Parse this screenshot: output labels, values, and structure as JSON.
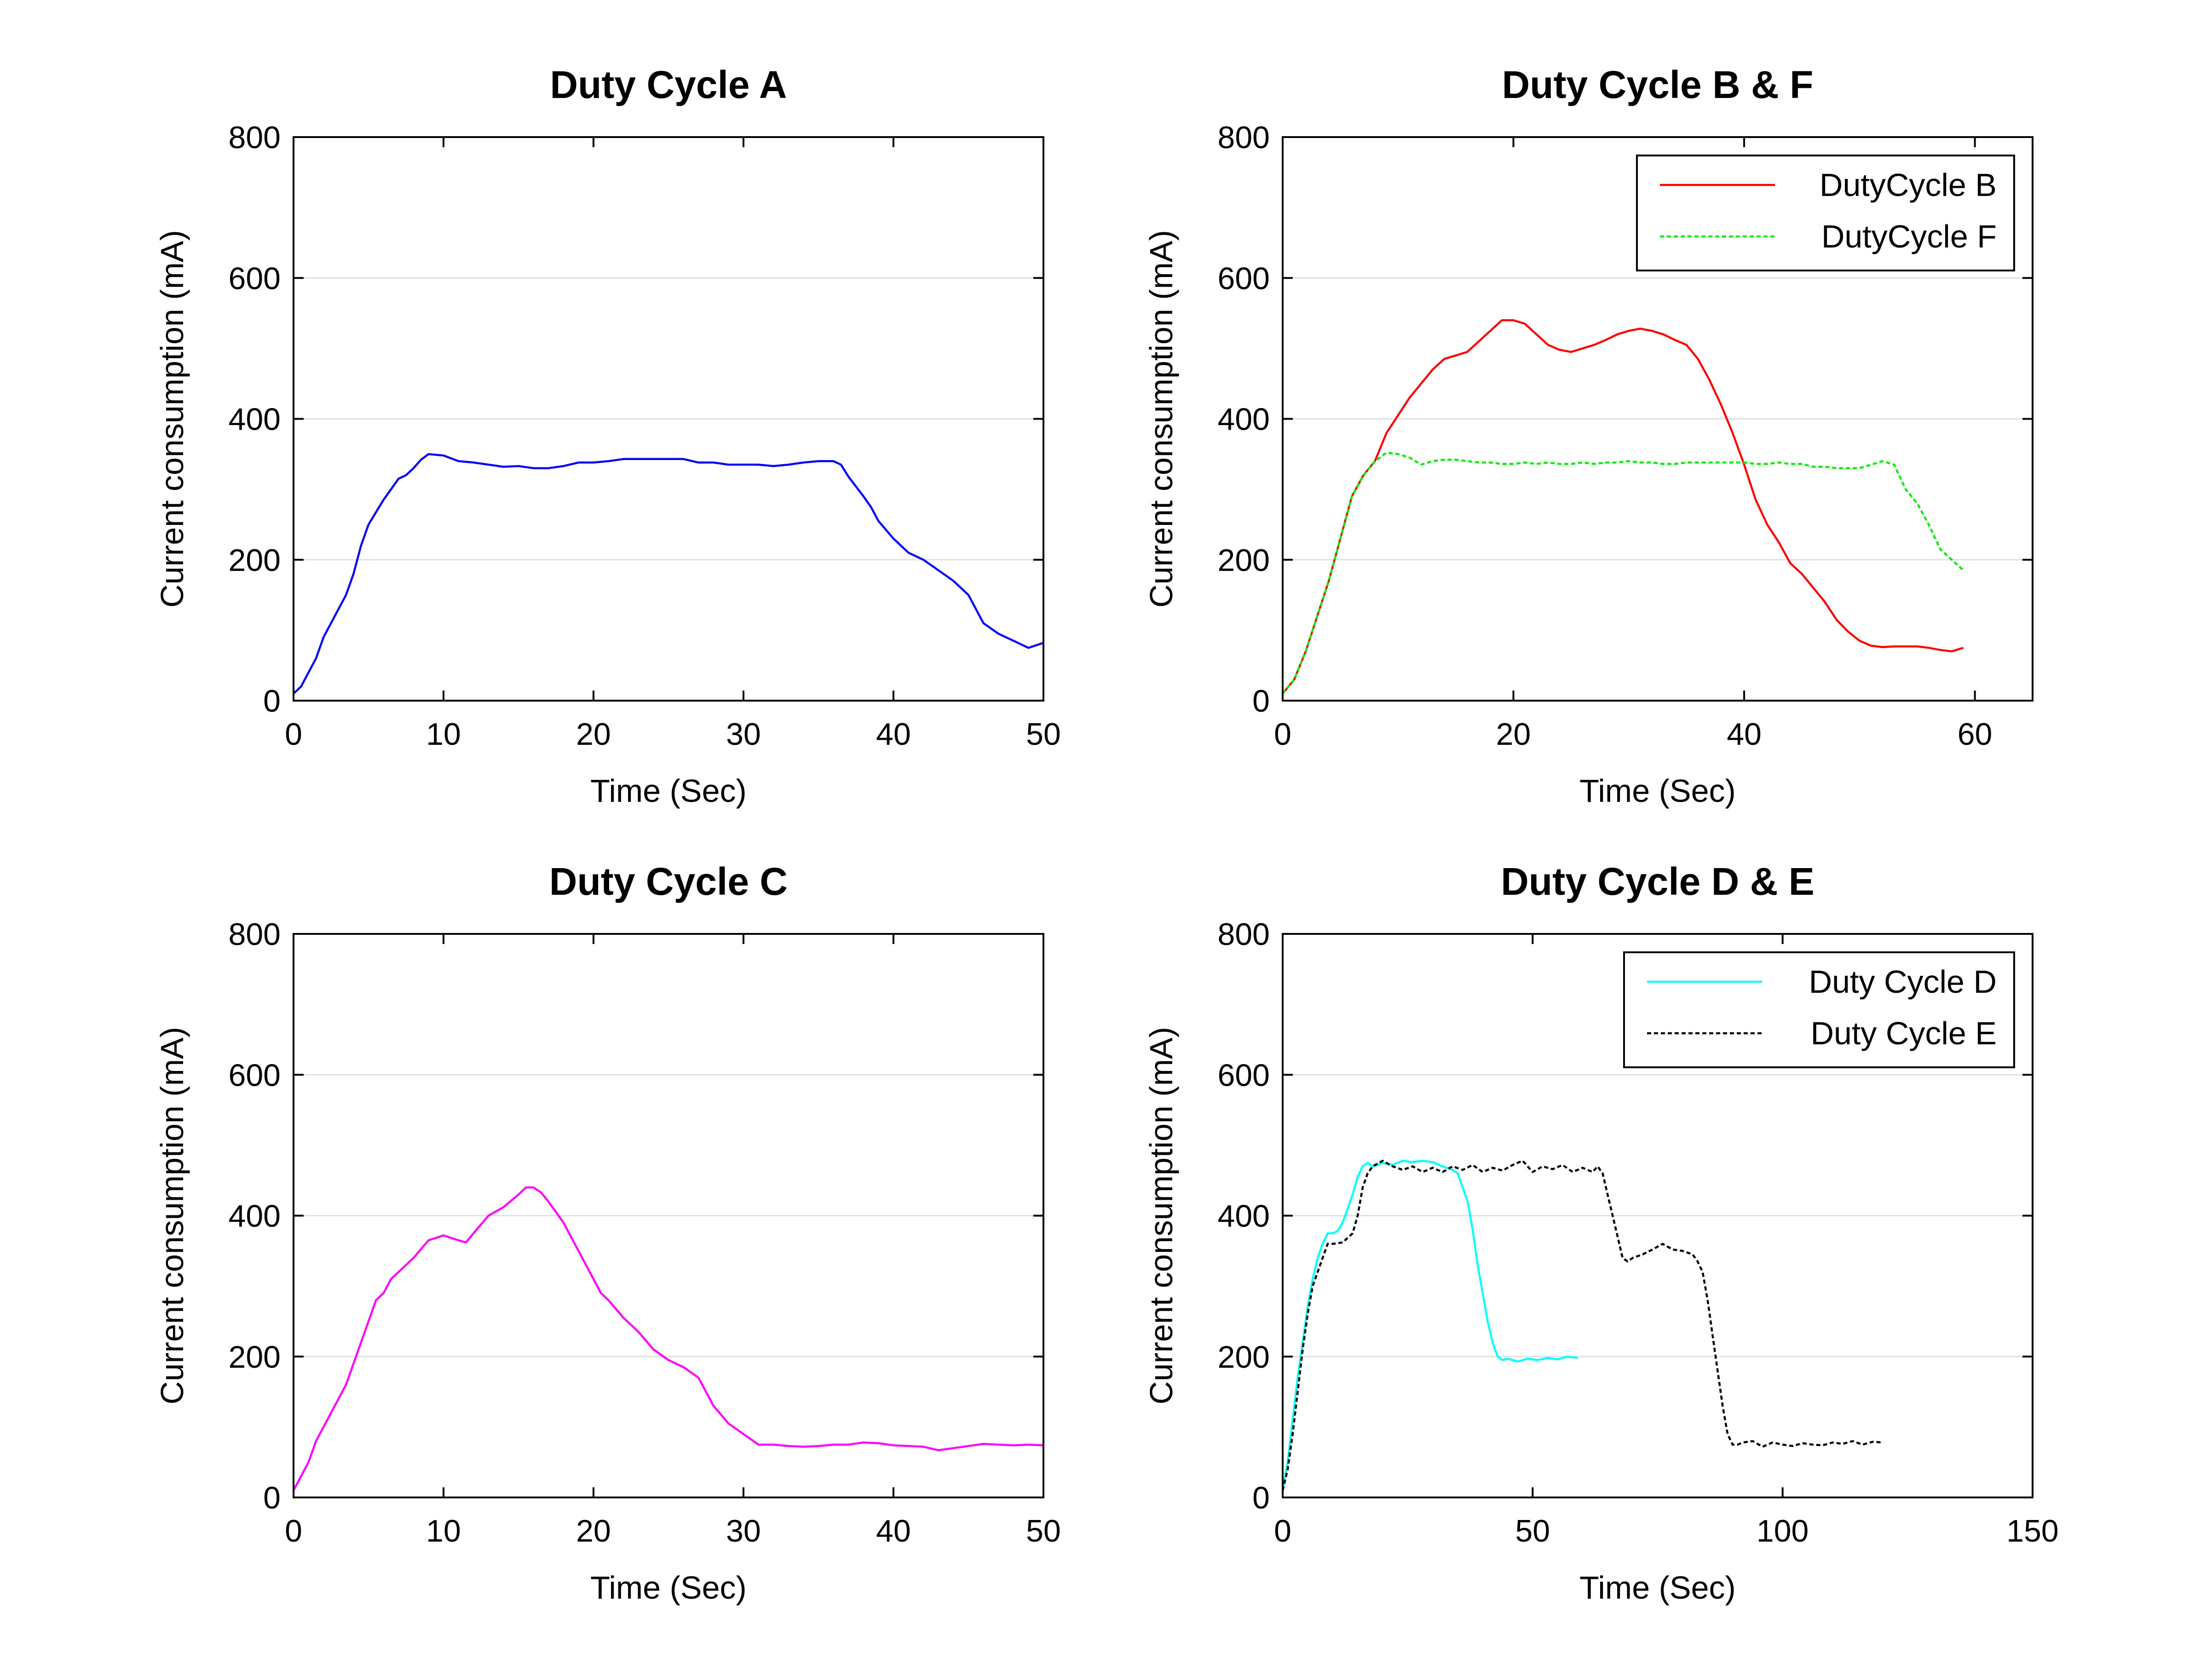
{
  "chart_data": [
    {
      "type": "line",
      "title": "Duty Cycle A",
      "xlabel": "Time (Sec)",
      "ylabel": "Current consumption (mA)",
      "xlim": [
        0,
        50
      ],
      "ylim": [
        0,
        800
      ],
      "xticks": [
        0,
        10,
        20,
        30,
        40,
        50
      ],
      "yticks": [
        0,
        200,
        400,
        600,
        800
      ],
      "grid": "horizontal",
      "legend": null,
      "series": [
        {
          "color": "#0000ff",
          "dash": "solid",
          "x": [
            0,
            0.5,
            1,
            1.5,
            2,
            3,
            3.5,
            4,
            4.5,
            5,
            6,
            7,
            7.5,
            8,
            8.5,
            9,
            10,
            11,
            12,
            13,
            14,
            15,
            16,
            17,
            18,
            19,
            20,
            21,
            22,
            23,
            24,
            25,
            26,
            27,
            28,
            29,
            30,
            31,
            32,
            33,
            34,
            35,
            35.5,
            36,
            36.5,
            37,
            38,
            38.5,
            39,
            40,
            41,
            42,
            43,
            44,
            45,
            46,
            47,
            48,
            49,
            50
          ],
          "y": [
            10,
            20,
            40,
            60,
            90,
            130,
            150,
            180,
            220,
            250,
            285,
            315,
            320,
            330,
            342,
            350,
            348,
            340,
            338,
            335,
            332,
            333,
            330,
            330,
            333,
            338,
            338,
            340,
            343,
            343,
            343,
            343,
            343,
            338,
            338,
            335,
            335,
            335,
            333,
            335,
            338,
            340,
            340,
            340,
            335,
            318,
            290,
            275,
            255,
            230,
            210,
            200,
            185,
            170,
            150,
            110,
            95,
            85,
            75,
            82
          ]
        }
      ]
    },
    {
      "type": "line",
      "title": "Duty Cycle B & F",
      "xlabel": "Time (Sec)",
      "ylabel": "Current consumption (mA)",
      "xlim": [
        0,
        65
      ],
      "ylim": [
        0,
        800
      ],
      "xticks": [
        0,
        20,
        40,
        60
      ],
      "yticks": [
        0,
        200,
        400,
        600,
        800
      ],
      "grid": "horizontal",
      "legend": "top-right",
      "series": [
        {
          "name": "DutyCycle B",
          "color": "#ff0000",
          "dash": "solid",
          "x": [
            0,
            1,
            2,
            3,
            4,
            5,
            6,
            7,
            8,
            9,
            10,
            11,
            12,
            13,
            14,
            15,
            16,
            17,
            18,
            19,
            20,
            21,
            22,
            23,
            24,
            25,
            26,
            27,
            28,
            29,
            30,
            31,
            32,
            33,
            34,
            35,
            36,
            37,
            38,
            39,
            40,
            41,
            42,
            43,
            44,
            45,
            46,
            47,
            48,
            49,
            50,
            51,
            52,
            53,
            54,
            55,
            56,
            57,
            58,
            59
          ],
          "y": [
            10,
            30,
            70,
            120,
            170,
            230,
            290,
            320,
            340,
            380,
            405,
            430,
            450,
            470,
            485,
            490,
            495,
            510,
            525,
            540,
            540,
            535,
            520,
            505,
            498,
            495,
            500,
            505,
            512,
            520,
            525,
            528,
            525,
            520,
            512,
            505,
            485,
            455,
            420,
            380,
            335,
            285,
            250,
            225,
            195,
            180,
            160,
            140,
            115,
            98,
            85,
            78,
            76,
            77,
            77,
            77,
            75,
            72,
            70,
            75
          ]
        },
        {
          "name": "DutyCycle F",
          "color": "#00ee00",
          "dash": "dashed",
          "x": [
            0,
            1,
            2,
            3,
            4,
            5,
            6,
            7,
            8,
            9,
            10,
            11,
            12,
            13,
            14,
            15,
            16,
            17,
            18,
            19,
            20,
            21,
            22,
            23,
            24,
            25,
            26,
            27,
            28,
            29,
            30,
            31,
            32,
            33,
            34,
            35,
            36,
            37,
            38,
            39,
            40,
            41,
            42,
            43,
            44,
            45,
            46,
            47,
            48,
            49,
            50,
            51,
            52,
            53,
            54,
            55,
            56,
            57,
            58,
            59
          ],
          "y": [
            10,
            30,
            70,
            120,
            170,
            230,
            290,
            320,
            340,
            352,
            350,
            345,
            335,
            340,
            342,
            342,
            340,
            338,
            338,
            336,
            336,
            338,
            336,
            338,
            336,
            336,
            338,
            336,
            338,
            338,
            340,
            338,
            338,
            336,
            336,
            338,
            338,
            338,
            338,
            338,
            338,
            336,
            336,
            338,
            336,
            336,
            332,
            332,
            330,
            330,
            330,
            335,
            340,
            335,
            300,
            280,
            250,
            215,
            200,
            185
          ]
        }
      ]
    },
    {
      "type": "line",
      "title": "Duty Cycle C",
      "xlabel": "Time (Sec)",
      "ylabel": "Current consumption (mA)",
      "xlim": [
        0,
        50
      ],
      "ylim": [
        0,
        800
      ],
      "xticks": [
        0,
        10,
        20,
        30,
        40,
        50
      ],
      "yticks": [
        0,
        200,
        400,
        600,
        800
      ],
      "grid": "horizontal",
      "legend": null,
      "series": [
        {
          "color": "#ff00ff",
          "dash": "solid",
          "x": [
            0,
            0.5,
            1,
            1.5,
            2,
            3,
            3.5,
            4,
            4.5,
            5,
            5.5,
            6,
            6.5,
            7,
            8,
            9,
            10,
            11,
            11.5,
            12,
            13,
            14,
            15,
            15.5,
            16,
            16.5,
            17,
            18,
            18.5,
            19,
            20,
            20.5,
            21,
            22,
            23,
            24,
            25,
            26,
            27,
            28,
            29,
            30,
            31,
            32,
            33,
            34,
            35,
            36,
            37,
            38,
            39,
            40,
            41,
            42,
            43,
            44,
            45,
            46,
            47,
            48,
            49,
            50
          ],
          "y": [
            10,
            30,
            50,
            80,
            100,
            140,
            160,
            190,
            220,
            250,
            280,
            290,
            310,
            320,
            340,
            365,
            372,
            365,
            362,
            375,
            400,
            412,
            430,
            440,
            440,
            433,
            420,
            390,
            370,
            350,
            310,
            290,
            280,
            255,
            235,
            210,
            195,
            185,
            170,
            130,
            105,
            90,
            75,
            75,
            73,
            72,
            73,
            75,
            75,
            78,
            77,
            74,
            73,
            72,
            67,
            70,
            73,
            76,
            75,
            74,
            75,
            74
          ]
        }
      ]
    },
    {
      "type": "line",
      "title": "Duty Cycle D & E",
      "xlabel": "Time (Sec)",
      "ylabel": "Current consumption (mA)",
      "xlim": [
        0,
        150
      ],
      "ylim": [
        0,
        800
      ],
      "xticks": [
        0,
        50,
        100,
        150
      ],
      "yticks": [
        0,
        200,
        400,
        600,
        800
      ],
      "grid": "horizontal",
      "legend": "top-right",
      "series": [
        {
          "name": "Duty Cycle D",
          "color": "#00ffff",
          "dash": "solid",
          "x": [
            0,
            1,
            2,
            3,
            4,
            5,
            6,
            7,
            8,
            9,
            10,
            11,
            12,
            13,
            14,
            15,
            16,
            17,
            18,
            19,
            20,
            22,
            24,
            26,
            28,
            30,
            32,
            34,
            35,
            36,
            37,
            38,
            39,
            40,
            41,
            42,
            43,
            44,
            45,
            47,
            49,
            51,
            53,
            55,
            57,
            59
          ],
          "y": [
            10,
            50,
            110,
            170,
            220,
            270,
            310,
            340,
            360,
            375,
            375,
            378,
            390,
            410,
            430,
            455,
            470,
            475,
            470,
            472,
            475,
            472,
            478,
            476,
            478,
            476,
            470,
            465,
            460,
            440,
            420,
            380,
            330,
            290,
            250,
            220,
            200,
            195,
            197,
            193,
            197,
            195,
            198,
            196,
            200,
            198
          ]
        },
        {
          "name": "Duty Cycle E",
          "color": "#000000",
          "dash": "dashed",
          "x": [
            0,
            1,
            2,
            3,
            4,
            5,
            6,
            7,
            8,
            9,
            10,
            12,
            14,
            15,
            16,
            17,
            18,
            20,
            22,
            24,
            26,
            28,
            30,
            32,
            34,
            36,
            38,
            40,
            42,
            44,
            46,
            48,
            50,
            52,
            54,
            56,
            58,
            60,
            62,
            63,
            64,
            65,
            66,
            67,
            68,
            69,
            70,
            72,
            74,
            76,
            78,
            80,
            82,
            83,
            84,
            85,
            86,
            87,
            88,
            89,
            90,
            91,
            92,
            94,
            96,
            98,
            100,
            102,
            104,
            106,
            108,
            110,
            112,
            114,
            116,
            118,
            120
          ],
          "y": [
            10,
            40,
            90,
            150,
            210,
            260,
            300,
            320,
            340,
            360,
            360,
            362,
            375,
            400,
            440,
            460,
            470,
            478,
            470,
            465,
            470,
            462,
            468,
            462,
            470,
            465,
            472,
            462,
            468,
            464,
            472,
            478,
            462,
            470,
            466,
            472,
            462,
            468,
            462,
            470,
            460,
            430,
            400,
            370,
            340,
            335,
            340,
            345,
            352,
            360,
            352,
            350,
            345,
            335,
            320,
            280,
            230,
            180,
            130,
            90,
            75,
            75,
            78,
            80,
            72,
            78,
            75,
            73,
            77,
            75,
            74,
            78,
            76,
            80,
            75,
            79,
            78
          ]
        }
      ]
    }
  ]
}
